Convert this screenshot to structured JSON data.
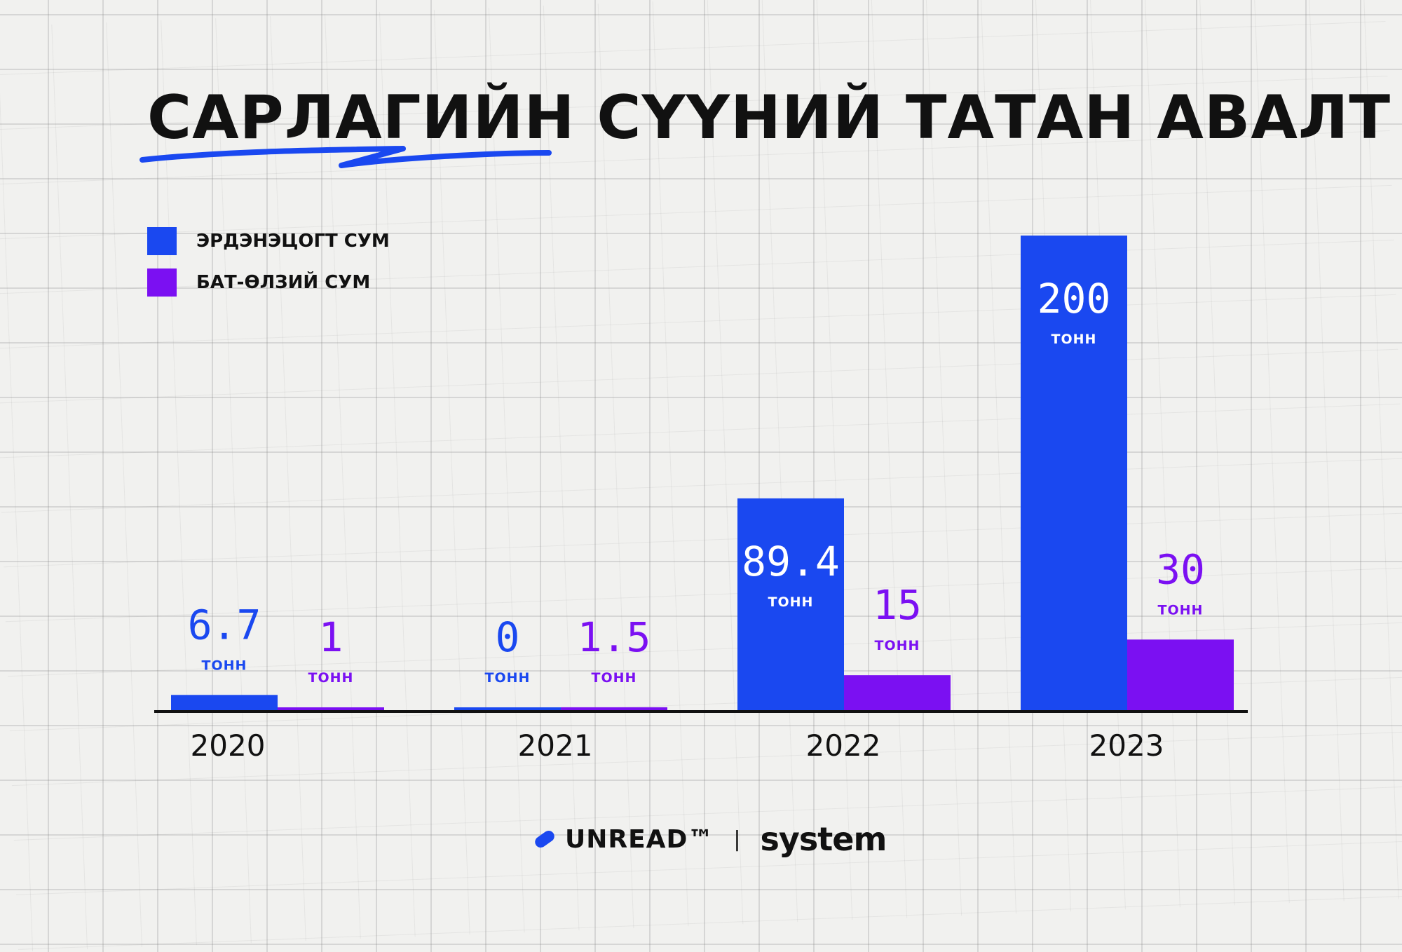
{
  "title": "САРЛАГИЙН СҮҮНИЙ ТАТАН АВАЛТ",
  "colors": {
    "blue": "#1a48f0",
    "purple": "#7b10f2",
    "text": "#111111"
  },
  "chart_data": {
    "type": "bar",
    "title": "САРЛАГИЙН СҮҮНИЙ ТАТАН АВАЛТ",
    "categories": [
      "2020",
      "2021",
      "2022",
      "2023"
    ],
    "unit": "ТОНН",
    "series": [
      {
        "name": "ЭРДЭНЭЦОГТ СУМ",
        "color": "#1a48f0",
        "values": [
          6.7,
          0,
          89.4,
          200
        ],
        "labels": [
          "6.7",
          "0",
          "89.4",
          "200"
        ]
      },
      {
        "name": "БАТ-ӨЛЗИЙ СУМ",
        "color": "#7b10f2",
        "values": [
          1,
          1.5,
          15,
          30
        ],
        "labels": [
          "1",
          "1.5",
          "15",
          "30"
        ]
      }
    ],
    "ylim": [
      0,
      200
    ],
    "grid": true,
    "legend_position": "top-left"
  },
  "footer": {
    "brand1": "UNREAD™",
    "separator": "|",
    "brand2": "system"
  }
}
